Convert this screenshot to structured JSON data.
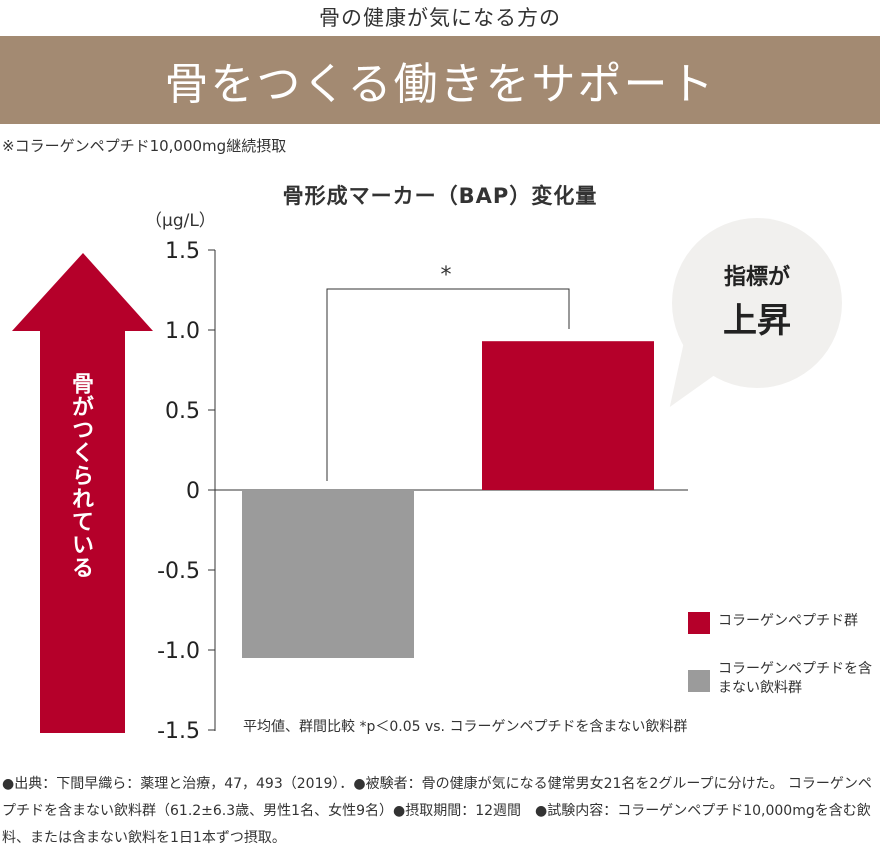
{
  "header": {
    "subtitle": "骨の健康が気になる方の",
    "banner": "骨をつくる働きをサポート",
    "note": "※コラーゲンペプチド10,000mg継続摂取"
  },
  "arrow": {
    "label": "骨がつくられている"
  },
  "bubble": {
    "line1": "指標が",
    "line2": "上昇"
  },
  "chart_data": {
    "type": "bar",
    "title": "骨形成マーカー（BAP）変化量",
    "ylabel": "（μg/L）",
    "ylim": [
      -1.5,
      1.5
    ],
    "yticks": [
      1.5,
      1.0,
      0.5,
      0,
      -0.5,
      -1.0,
      -1.5
    ],
    "ytick_labels": [
      "1.5",
      "1.0",
      "0.5",
      "0",
      "-0.5",
      "-1.0",
      "-1.5"
    ],
    "series": [
      {
        "name": "コラーゲンペプチドを含まない飲料群",
        "value": -1.05,
        "color": "#9b9b9b"
      },
      {
        "name": "コラーゲンペプチド群",
        "value": 0.93,
        "color": "#b5002a"
      }
    ],
    "significance": "*",
    "note": "平均値、群間比較  *p＜0.05 vs. コラーゲンペプチドを含まない飲料群",
    "legend": [
      {
        "label": "コラーゲンペプチド群",
        "color": "#b5002a"
      },
      {
        "label": "コラーゲンペプチドを含まない飲料群",
        "color": "#9b9b9b"
      }
    ]
  },
  "footer": {
    "text": "●出典：下間早織ら：薬理と治療，47，493（2019）．●被験者：骨の健康が気になる健常男女21名を2グループに分けた。 コラーゲンペプチドを含まない飲料群（61.2±6.3歳、男性1名、女性9名）●摂取期間：12週間　●試験内容：コラーゲンペプチド10,000mgを含む飲料、または含まない飲料を1日1本ずつ摂取。"
  },
  "colors": {
    "banner": "#a38a72",
    "accent": "#b5002a",
    "gray": "#9b9b9b"
  }
}
